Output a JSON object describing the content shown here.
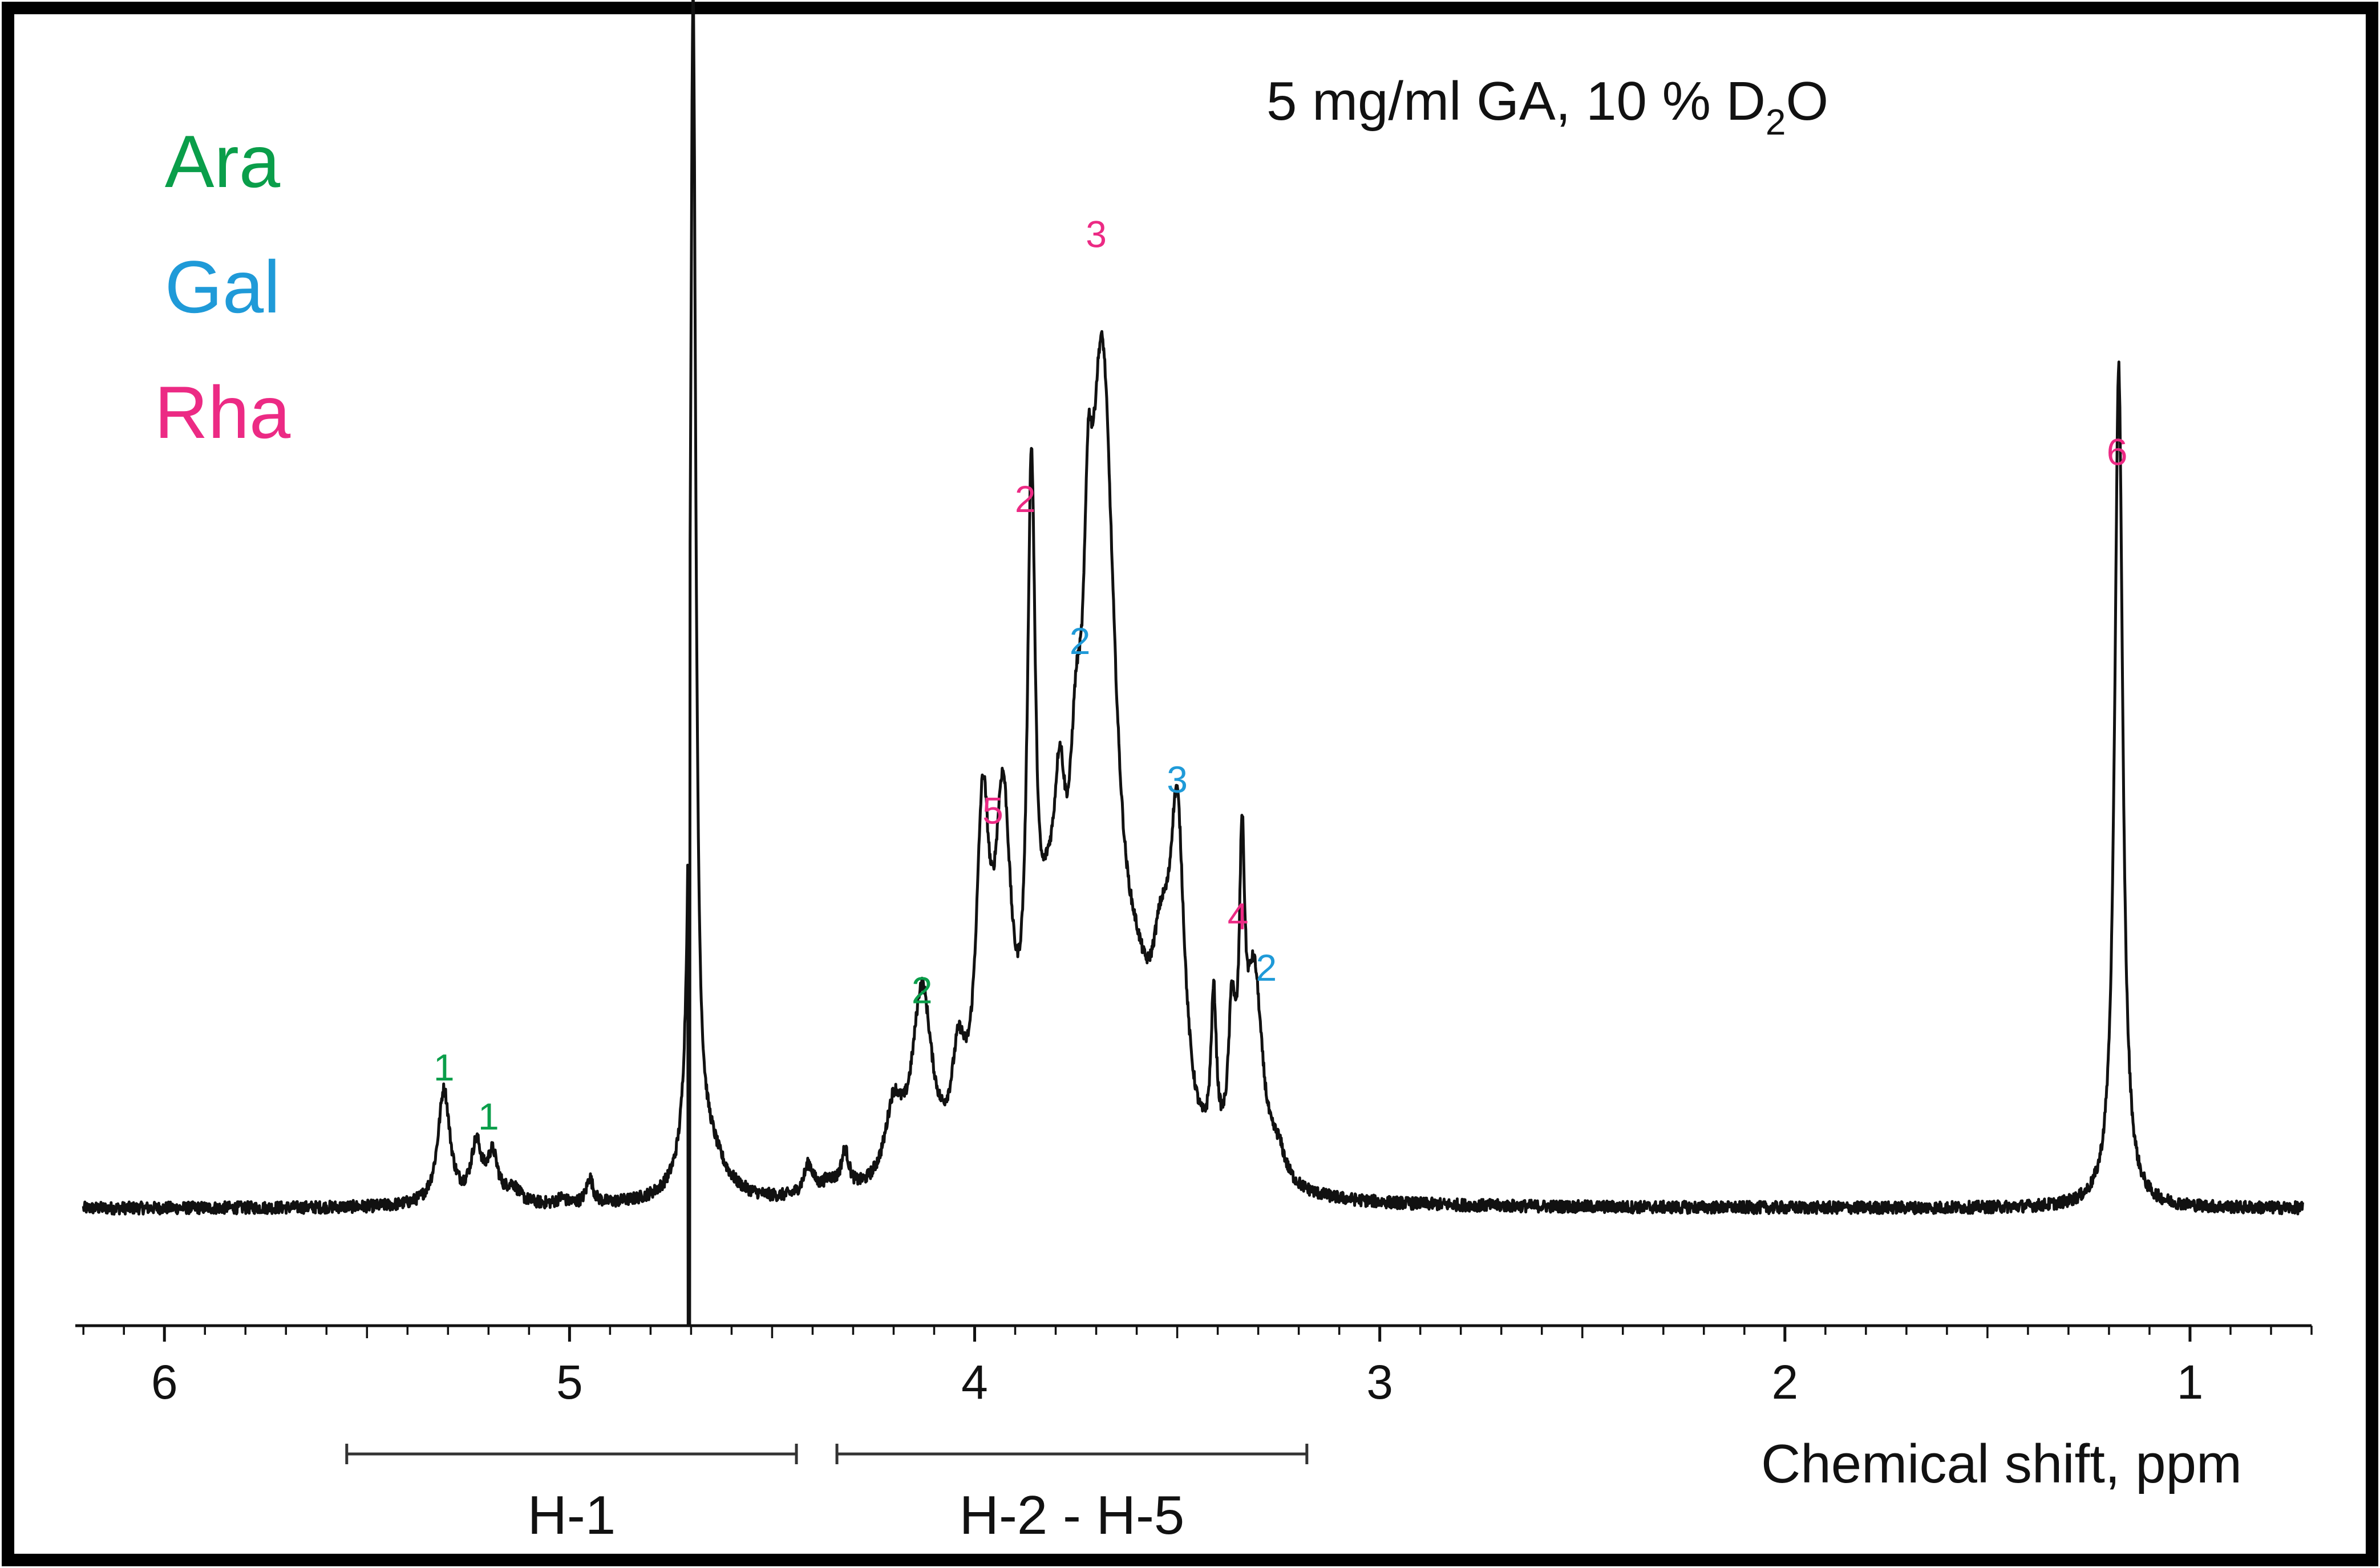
{
  "chart_data": {
    "type": "line",
    "title": "5 mg/ml GA, 10 % D",
    "title_subscript": "2",
    "title_suffix": "O",
    "xlabel": "Chemical shift, ppm",
    "ylabel": "",
    "x_reversed": true,
    "xlim": [
      6.22,
      0.7
    ],
    "ylim": [
      -0.08,
      1.08
    ],
    "grid": false,
    "x_ticks": [
      {
        "value": 6,
        "label": "6"
      },
      {
        "value": 5,
        "label": "5"
      },
      {
        "value": 4,
        "label": "4"
      },
      {
        "value": 3,
        "label": "3"
      },
      {
        "value": 2,
        "label": "2"
      },
      {
        "value": 1,
        "label": "1"
      }
    ],
    "legend": {
      "placement": "top-left",
      "entries": [
        {
          "name": "Ara",
          "color": "#0a9e4a"
        },
        {
          "name": "Gal",
          "color": "#1f9ad8"
        },
        {
          "name": "Rha",
          "color": "#ec2a84"
        }
      ]
    },
    "regions": [
      {
        "label": "H-1",
        "x_start": 5.55,
        "x_end": 4.44
      },
      {
        "label": "H-2 - H-5",
        "x_start": 4.34,
        "x_end": 3.18
      }
    ],
    "series": [
      {
        "color": "#111111",
        "baseline": 0.0,
        "peaks": [
          {
            "x": 5.31,
            "y": 0.112,
            "w": 0.018
          },
          {
            "x": 5.23,
            "y": 0.055,
            "w": 0.016
          },
          {
            "x": 5.19,
            "y": 0.045,
            "w": 0.016
          },
          {
            "x": 5.14,
            "y": 0.015,
            "w": 0.02
          },
          {
            "x": 5.02,
            "y": 0.006,
            "w": 0.012
          },
          {
            "x": 4.95,
            "y": 0.025,
            "w": 0.01
          },
          {
            "x": 4.75,
            "y": 0.0,
            "w": 0.05
          },
          {
            "x": 4.695,
            "y": 1.15,
            "w": 0.008
          },
          {
            "x": 4.66,
            "y": 0.05,
            "w": 0.05
          },
          {
            "x": 4.41,
            "y": 0.03,
            "w": 0.015
          },
          {
            "x": 4.36,
            "y": 0.012,
            "w": 0.02
          },
          {
            "x": 4.32,
            "y": 0.038,
            "w": 0.012
          },
          {
            "x": 4.2,
            "y": 0.07,
            "w": 0.025
          },
          {
            "x": 4.13,
            "y": 0.185,
            "w": 0.03
          },
          {
            "x": 4.04,
            "y": 0.09,
            "w": 0.02
          },
          {
            "x": 3.98,
            "y": 0.31,
            "w": 0.02
          },
          {
            "x": 3.93,
            "y": 0.32,
            "w": 0.025
          },
          {
            "x": 3.86,
            "y": 0.58,
            "w": 0.012
          },
          {
            "x": 3.82,
            "y": 0.14,
            "w": 0.03
          },
          {
            "x": 3.79,
            "y": 0.2,
            "w": 0.018
          },
          {
            "x": 3.75,
            "y": 0.2,
            "w": 0.02
          },
          {
            "x": 3.72,
            "y": 0.22,
            "w": 0.012
          },
          {
            "x": 3.685,
            "y": 0.76,
            "w": 0.04
          },
          {
            "x": 3.6,
            "y": 0.08,
            "w": 0.04
          },
          {
            "x": 3.54,
            "y": 0.14,
            "w": 0.03
          },
          {
            "x": 3.5,
            "y": 0.3,
            "w": 0.022
          },
          {
            "x": 3.41,
            "y": 0.15,
            "w": 0.008
          },
          {
            "x": 3.365,
            "y": 0.13,
            "w": 0.01
          },
          {
            "x": 3.34,
            "y": 0.26,
            "w": 0.008
          },
          {
            "x": 3.31,
            "y": 0.2,
            "w": 0.025
          },
          {
            "x": 3.25,
            "y": 0.025,
            "w": 0.02
          },
          {
            "x": 1.176,
            "y": 0.82,
            "w": 0.012
          }
        ],
        "points": [
          [
            6.2,
            0.0
          ],
          [
            5.6,
            0.0
          ],
          [
            5.31,
            0.11
          ],
          [
            5.24,
            0.05
          ],
          [
            5.19,
            0.045
          ],
          [
            5.0,
            0.003
          ],
          [
            4.95,
            0.025
          ],
          [
            4.8,
            0.02
          ],
          [
            4.72,
            0.2
          ],
          [
            4.7,
            1.08
          ],
          [
            4.69,
            -0.1
          ],
          [
            4.68,
            0.18
          ],
          [
            4.62,
            0.03
          ],
          [
            4.5,
            0.005
          ],
          [
            4.41,
            0.03
          ],
          [
            4.32,
            0.04
          ],
          [
            4.2,
            0.08
          ],
          [
            4.13,
            0.19
          ],
          [
            4.06,
            0.1
          ],
          [
            3.98,
            0.37
          ],
          [
            3.93,
            0.37
          ],
          [
            3.89,
            0.2
          ],
          [
            3.86,
            0.68
          ],
          [
            3.82,
            0.44
          ],
          [
            3.79,
            0.44
          ],
          [
            3.75,
            0.4
          ],
          [
            3.72,
            0.55
          ],
          [
            3.685,
            0.98
          ],
          [
            3.63,
            0.34
          ],
          [
            3.56,
            0.1
          ],
          [
            3.5,
            0.4
          ],
          [
            3.44,
            0.04
          ],
          [
            3.41,
            0.15
          ],
          [
            3.37,
            0.19
          ],
          [
            3.34,
            0.28
          ],
          [
            3.31,
            0.2
          ],
          [
            3.25,
            0.01
          ],
          [
            3.0,
            0.0
          ],
          [
            2.0,
            0.0
          ],
          [
            1.35,
            0.0
          ],
          [
            1.176,
            0.83
          ],
          [
            1.0,
            0.0
          ],
          [
            0.72,
            0.0
          ]
        ]
      }
    ],
    "annotations": [
      {
        "text": "1",
        "x": 5.31,
        "y": 0.125,
        "group": "Ara"
      },
      {
        "text": "1",
        "x": 5.2,
        "y": 0.077,
        "group": "Ara"
      },
      {
        "text": "2",
        "x": 4.13,
        "y": 0.2,
        "group": "Ara"
      },
      {
        "text": "5",
        "x": 3.955,
        "y": 0.375,
        "group": "Rha"
      },
      {
        "text": "2",
        "x": 3.875,
        "y": 0.678,
        "group": "Rha"
      },
      {
        "text": "3",
        "x": 3.7,
        "y": 0.936,
        "group": "Rha"
      },
      {
        "text": "2",
        "x": 3.74,
        "y": 0.54,
        "group": "Gal"
      },
      {
        "text": "3",
        "x": 3.5,
        "y": 0.405,
        "group": "Gal"
      },
      {
        "text": "4",
        "x": 3.35,
        "y": 0.272,
        "group": "Rha"
      },
      {
        "text": "2",
        "x": 3.28,
        "y": 0.222,
        "group": "Gal"
      },
      {
        "text": "6",
        "x": 1.18,
        "y": 0.724,
        "group": "Rha"
      }
    ]
  }
}
